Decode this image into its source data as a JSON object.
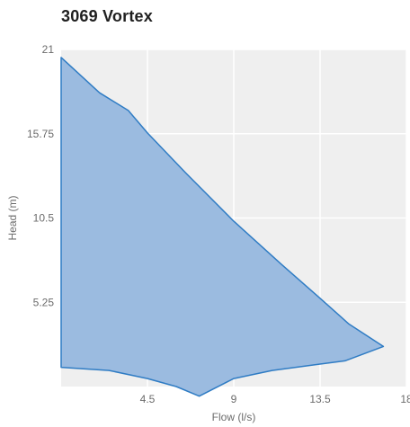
{
  "chart_data": {
    "type": "area",
    "title": "3069 Vortex",
    "xlabel": "Flow (l/s)",
    "ylabel": "Head (m)",
    "xlim": [
      0,
      18
    ],
    "ylim": [
      0,
      21
    ],
    "x_ticks": [
      "4.5",
      "9",
      "13.5",
      "18"
    ],
    "y_ticks": [
      "21",
      "15.75",
      "10.5",
      "5.25"
    ],
    "grid": true,
    "colors": {
      "fill": "#9bbbe0",
      "stroke": "#2f7cc4",
      "plot_background": "#efefef",
      "grid": "#ffffff"
    },
    "series": [
      {
        "upper_boundary": {
          "x": [
            0,
            2.0,
            3.5,
            4.5,
            6.5,
            9.0,
            11.5,
            13.5,
            15.0,
            16.8
          ],
          "y": [
            20.5,
            18.3,
            17.2,
            15.8,
            13.3,
            10.3,
            7.6,
            5.5,
            3.9,
            2.5
          ]
        },
        "lower_boundary": {
          "x": [
            0,
            2.5,
            4.5,
            6.0,
            7.2,
            9.0,
            11.0,
            13.5,
            14.8,
            16.8
          ],
          "y": [
            1.2,
            1.0,
            0.5,
            0.0,
            -0.6,
            0.5,
            1.0,
            1.4,
            1.6,
            2.5
          ]
        }
      }
    ]
  }
}
